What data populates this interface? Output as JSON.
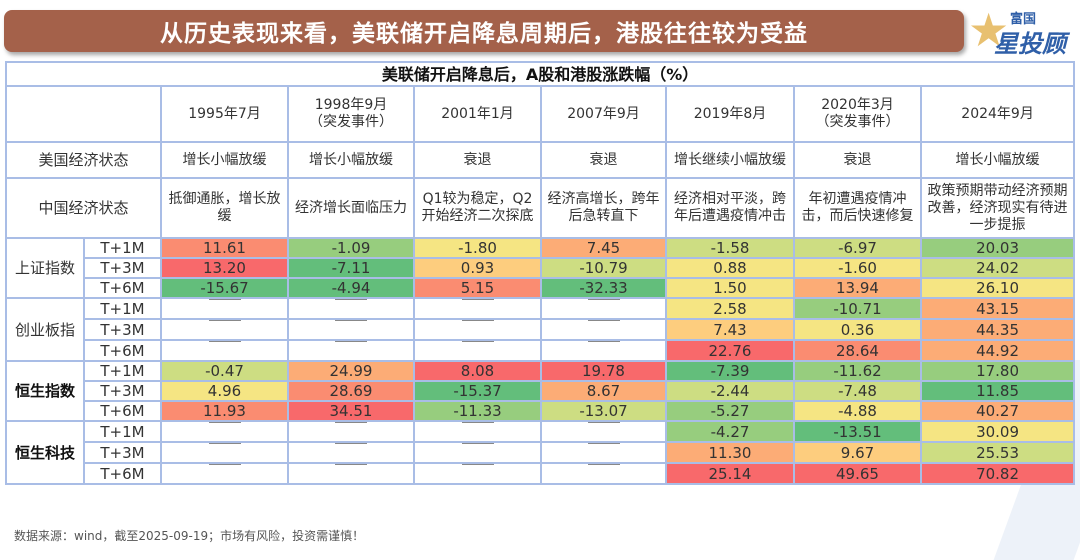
{
  "banner": {
    "title": "从历史表现来看，美联储开启降息周期后，港股往往较为受益"
  },
  "logo": {
    "top": "富国",
    "bottom": "星投顾"
  },
  "chart_data": {
    "type": "table",
    "title": "美联储开启降息后，A股和港股涨跌幅（%）",
    "columns": [
      "1995年7月",
      "1998年9月\n（突发事件）",
      "2001年1月",
      "2007年9月",
      "2019年8月",
      "2020年3月\n（突发事件）",
      "2024年9月"
    ],
    "us_label": "美国经济状态",
    "us_state": [
      "增长小幅放缓",
      "增长小幅放缓",
      "衰退",
      "衰退",
      "增长继续小幅放缓",
      "衰退",
      "增长小幅放缓"
    ],
    "cn_label": "中国经济状态",
    "cn_state": [
      "抵御通胀，增长放缓",
      "经济增长面临压力",
      "Q1较为稳定，Q2开始经济二次探底",
      "经济高增长，跨年后急转直下",
      "经济相对平淡，跨年后遭遇疫情冲击",
      "年初遭遇疫情冲击，而后快速修复",
      "政策预期带动经济预期改善，经济现实有待进一步提振"
    ],
    "palette": {
      "R": "#f8696b",
      "OR": "#fa8c71",
      "O": "#fcac76",
      "LO": "#fdcd7e",
      "Y": "#f5e583",
      "YG": "#cddd82",
      "LG": "#97cd7e",
      "G": "#63be7b",
      "W": "#ffffff"
    },
    "groups": [
      {
        "name": "上证指数",
        "bold": false,
        "rows": [
          {
            "period": "T+1M",
            "values": [
              "11.61",
              "-1.09",
              "-1.80",
              "7.45",
              "-1.58",
              "-6.97",
              "20.03"
            ],
            "colors": [
              "OR",
              "LG",
              "Y",
              "O",
              "YG",
              "YG",
              "LG"
            ]
          },
          {
            "period": "T+3M",
            "values": [
              "13.20",
              "-7.11",
              "0.93",
              "-10.79",
              "0.88",
              "-1.60",
              "24.02"
            ],
            "colors": [
              "R",
              "G",
              "LO",
              "YG",
              "Y",
              "Y",
              "YG"
            ]
          },
          {
            "period": "T+6M",
            "values": [
              "-15.67",
              "-4.94",
              "5.15",
              "-32.33",
              "1.50",
              "13.94",
              "26.10"
            ],
            "colors": [
              "G",
              "G",
              "OR",
              "G",
              "Y",
              "O",
              "Y"
            ]
          }
        ]
      },
      {
        "name": "创业板指",
        "bold": false,
        "rows": [
          {
            "period": "T+1M",
            "values": [
              "—",
              "—",
              "—",
              "—",
              "2.58",
              "-10.71",
              "43.15"
            ],
            "colors": [
              "W",
              "W",
              "W",
              "W",
              "Y",
              "LG",
              "O"
            ]
          },
          {
            "period": "T+3M",
            "values": [
              "—",
              "—",
              "—",
              "—",
              "7.43",
              "0.36",
              "44.35"
            ],
            "colors": [
              "W",
              "W",
              "W",
              "W",
              "LO",
              "Y",
              "O"
            ]
          },
          {
            "period": "T+6M",
            "values": [
              "—",
              "—",
              "—",
              "—",
              "22.76",
              "28.64",
              "44.92"
            ],
            "colors": [
              "W",
              "W",
              "W",
              "W",
              "R",
              "OR",
              "O"
            ]
          }
        ]
      },
      {
        "name": "恒生指数",
        "bold": true,
        "rows": [
          {
            "period": "T+1M",
            "values": [
              "-0.47",
              "24.99",
              "8.08",
              "19.78",
              "-7.39",
              "-11.62",
              "17.80"
            ],
            "colors": [
              "YG",
              "O",
              "R",
              "R",
              "G",
              "LG",
              "LG"
            ]
          },
          {
            "period": "T+3M",
            "values": [
              "4.96",
              "28.69",
              "-15.37",
              "8.67",
              "-2.44",
              "-7.48",
              "11.85"
            ],
            "colors": [
              "Y",
              "OR",
              "G",
              "O",
              "YG",
              "YG",
              "G"
            ]
          },
          {
            "period": "T+6M",
            "values": [
              "11.93",
              "34.51",
              "-11.33",
              "-13.07",
              "-5.27",
              "-4.88",
              "40.27"
            ],
            "colors": [
              "OR",
              "R",
              "LG",
              "YG",
              "LG",
              "Y",
              "O"
            ]
          }
        ]
      },
      {
        "name": "恒生科技",
        "bold": true,
        "rows": [
          {
            "period": "T+1M",
            "values": [
              "—",
              "—",
              "—",
              "—",
              "-4.27",
              "-13.51",
              "30.09"
            ],
            "colors": [
              "W",
              "W",
              "W",
              "W",
              "LG",
              "G",
              "Y"
            ]
          },
          {
            "period": "T+3M",
            "values": [
              "—",
              "—",
              "—",
              "—",
              "11.30",
              "9.67",
              "25.53"
            ],
            "colors": [
              "W",
              "W",
              "W",
              "W",
              "O",
              "LO",
              "YG"
            ]
          },
          {
            "period": "T+6M",
            "values": [
              "—",
              "—",
              "—",
              "—",
              "25.14",
              "49.65",
              "70.82"
            ],
            "colors": [
              "W",
              "W",
              "W",
              "W",
              "R",
              "R",
              "R"
            ]
          }
        ]
      }
    ]
  },
  "footer": {
    "source": "数据来源：wind，截至2025-09-19；市场有风险，投资需谨慎！"
  }
}
